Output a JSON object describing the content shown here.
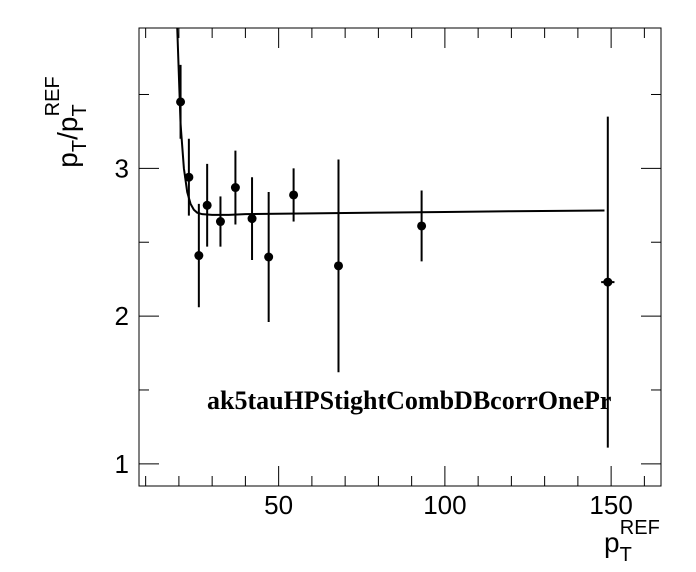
{
  "chart_data": {
    "type": "scatter",
    "title": "",
    "xlabel": {
      "main": "p",
      "sub": "T",
      "sup": "REF"
    },
    "ylabel": {
      "p1": "p",
      "s1": "T",
      "slash": "/p",
      "s2": "T",
      "sup": "REF"
    },
    "xlim": [
      8,
      165
    ],
    "ylim": [
      0.85,
      3.95
    ],
    "xticks": [
      {
        "v": 50,
        "label": "50"
      },
      {
        "v": 100,
        "label": "100"
      },
      {
        "v": 150,
        "label": "150"
      }
    ],
    "yticks": [
      {
        "v": 1,
        "label": "1"
      },
      {
        "v": 2,
        "label": "2"
      },
      {
        "v": 3,
        "label": "3"
      }
    ],
    "annotation": "ak5tauHPStightCombDBcorrOnePr",
    "points": [
      {
        "x": 20.5,
        "y": 3.45,
        "yerr": 0.25,
        "xerr": 0
      },
      {
        "x": 23.0,
        "y": 2.94,
        "yerr": 0.26,
        "xerr": 0
      },
      {
        "x": 26.0,
        "y": 2.41,
        "yerr": 0.35,
        "xerr": 0
      },
      {
        "x": 28.5,
        "y": 2.75,
        "yerr": 0.28,
        "xerr": 0
      },
      {
        "x": 32.5,
        "y": 2.64,
        "yerr": 0.17,
        "xerr": 0
      },
      {
        "x": 37.0,
        "y": 2.87,
        "yerr": 0.25,
        "xerr": 0
      },
      {
        "x": 42.0,
        "y": 2.66,
        "yerr": 0.28,
        "xerr": 0
      },
      {
        "x": 47.0,
        "y": 2.4,
        "yerr": 0.44,
        "xerr": 0
      },
      {
        "x": 54.5,
        "y": 2.82,
        "yerr": 0.18,
        "xerr": 0
      },
      {
        "x": 68.0,
        "y": 2.34,
        "yerr": 0.72,
        "xerr": 0
      },
      {
        "x": 93.0,
        "y": 2.61,
        "yerr": 0.24,
        "xerr": 0
      },
      {
        "x": 149.0,
        "y": 2.23,
        "yerr": 1.12,
        "xerr": 2.0
      }
    ],
    "fit": {
      "x": [
        19.5,
        20.5,
        21.5,
        22.5,
        23.5,
        24.5,
        25.5,
        27,
        30,
        35,
        40,
        60,
        80,
        100,
        120,
        148
      ],
      "y": [
        3.95,
        3.3,
        3.0,
        2.84,
        2.76,
        2.72,
        2.7,
        2.69,
        2.685,
        2.685,
        2.69,
        2.695,
        2.7,
        2.705,
        2.71,
        2.715
      ]
    },
    "grid": false,
    "legend": "none"
  }
}
